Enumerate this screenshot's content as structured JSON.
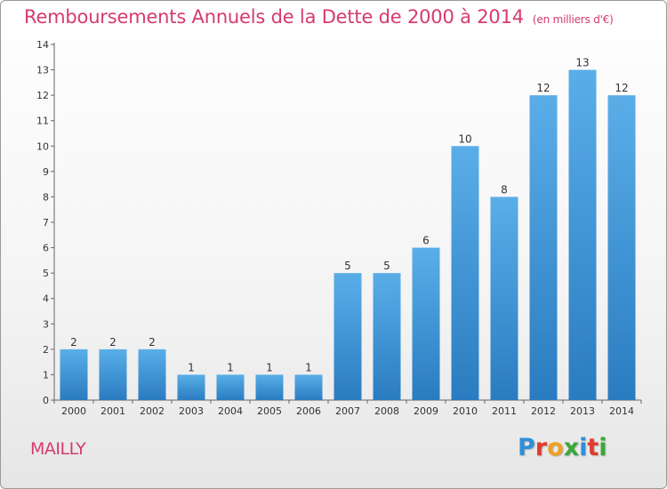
{
  "title": "Remboursements Annuels de la Dette de 2000 à 2014",
  "unit": "(en milliers d'€)",
  "commune": "MAILLY",
  "logo": {
    "letters": [
      "P",
      "r",
      "o",
      "x",
      "i",
      "t",
      "i"
    ],
    "colors": [
      "#2e8fd6",
      "#e63a2e",
      "#f0a020",
      "#3aa83a",
      "#2e8fd6",
      "#e63a2e",
      "#3aa83a"
    ]
  },
  "colors": {
    "bar_top": "#5aaee8",
    "bar_bottom": "#2a7cc0",
    "title": "#d63b6e"
  },
  "chart_data": {
    "type": "bar",
    "categories": [
      "2000",
      "2001",
      "2002",
      "2003",
      "2004",
      "2005",
      "2006",
      "2007",
      "2008",
      "2009",
      "2010",
      "2011",
      "2012",
      "2013",
      "2014"
    ],
    "values": [
      2,
      2,
      2,
      1,
      1,
      1,
      1,
      5,
      5,
      6,
      10,
      8,
      12,
      13,
      12
    ],
    "value_labels": [
      "2",
      "2",
      "2",
      "1",
      "1",
      "1",
      "1",
      "5",
      "5",
      "6",
      "10",
      "8",
      "12",
      "13",
      "12"
    ],
    "yticks": [
      "0",
      "1",
      "2",
      "3",
      "4",
      "5",
      "6",
      "7",
      "8",
      "9",
      "10",
      "11",
      "12",
      "13",
      "14"
    ],
    "ylim": [
      0,
      14
    ],
    "grid": false
  }
}
